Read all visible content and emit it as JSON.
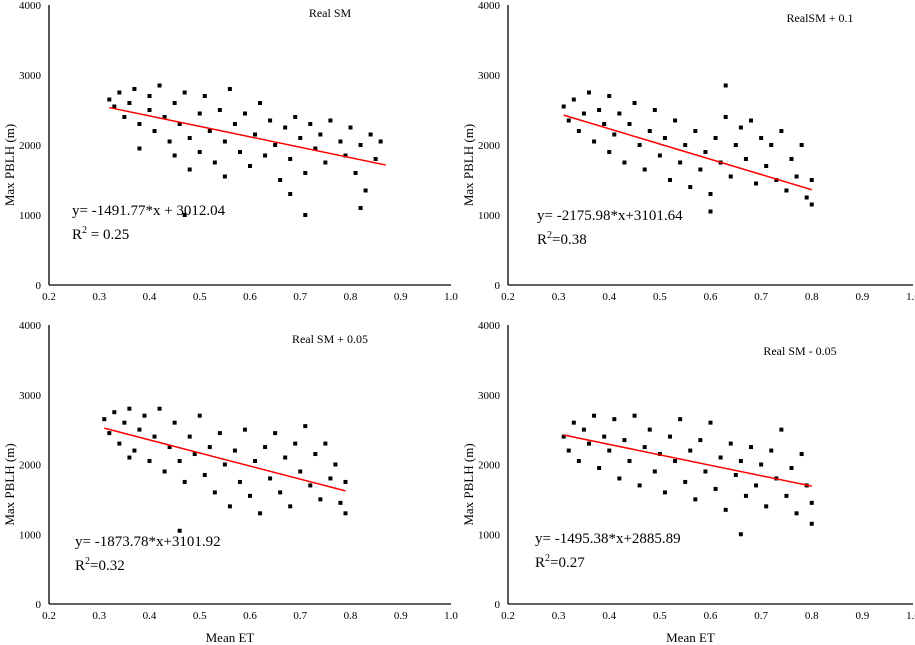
{
  "chart_data": [
    {
      "type": "scatter",
      "title": "Real SM",
      "xlabel": "",
      "ylabel": "Max PBLH (m)",
      "xlim": [
        0.2,
        1.0
      ],
      "ylim": [
        0,
        4000
      ],
      "xticks": [
        "0.2",
        "0.3",
        "0.4",
        "0.5",
        "0.6",
        "0.7",
        "0.8",
        "0.9",
        "1.0"
      ],
      "yticks": [
        "0",
        "1000",
        "2000",
        "3000",
        "4000"
      ],
      "grid": false,
      "equation": "y= -1491.77*x + 3012.04",
      "r2_label": "R",
      "r2_value": " = 0.25",
      "fit": {
        "slope": -1491.77,
        "intercept": 3012.04,
        "x_range": [
          0.32,
          0.87
        ]
      },
      "points": [
        [
          0.32,
          2650
        ],
        [
          0.33,
          2550
        ],
        [
          0.34,
          2750
        ],
        [
          0.35,
          2400
        ],
        [
          0.36,
          2600
        ],
        [
          0.37,
          2800
        ],
        [
          0.38,
          2300
        ],
        [
          0.38,
          1950
        ],
        [
          0.4,
          2700
        ],
        [
          0.4,
          2500
        ],
        [
          0.41,
          2200
        ],
        [
          0.42,
          2850
        ],
        [
          0.43,
          2400
        ],
        [
          0.44,
          2050
        ],
        [
          0.45,
          2600
        ],
        [
          0.45,
          1850
        ],
        [
          0.46,
          2300
        ],
        [
          0.47,
          2750
        ],
        [
          0.48,
          2100
        ],
        [
          0.48,
          1650
        ],
        [
          0.5,
          2450
        ],
        [
          0.5,
          1900
        ],
        [
          0.51,
          2700
        ],
        [
          0.52,
          2200
        ],
        [
          0.53,
          1750
        ],
        [
          0.54,
          2500
        ],
        [
          0.55,
          2050
        ],
        [
          0.55,
          1550
        ],
        [
          0.56,
          2800
        ],
        [
          0.57,
          2300
        ],
        [
          0.58,
          1900
        ],
        [
          0.59,
          2450
        ],
        [
          0.6,
          1700
        ],
        [
          0.61,
          2150
        ],
        [
          0.62,
          2600
        ],
        [
          0.63,
          1850
        ],
        [
          0.64,
          2350
        ],
        [
          0.65,
          2000
        ],
        [
          0.66,
          1500
        ],
        [
          0.67,
          2250
        ],
        [
          0.68,
          1800
        ],
        [
          0.69,
          2400
        ],
        [
          0.7,
          2100
        ],
        [
          0.71,
          1600
        ],
        [
          0.72,
          2300
        ],
        [
          0.73,
          1950
        ],
        [
          0.74,
          2150
        ],
        [
          0.75,
          1750
        ],
        [
          0.76,
          2350
        ],
        [
          0.78,
          2050
        ],
        [
          0.79,
          1850
        ],
        [
          0.8,
          2250
        ],
        [
          0.81,
          1600
        ],
        [
          0.82,
          2000
        ],
        [
          0.83,
          1350
        ],
        [
          0.84,
          2150
        ],
        [
          0.85,
          1800
        ],
        [
          0.86,
          2050
        ],
        [
          0.71,
          1000
        ],
        [
          0.47,
          1000
        ],
        [
          0.82,
          1100
        ],
        [
          0.68,
          1300
        ]
      ],
      "colors": {
        "points": "#000000",
        "fit": "#ff0000"
      }
    },
    {
      "type": "scatter",
      "title": "RealSM + 0.1",
      "xlabel": "",
      "ylabel": "Max PBLH (m)",
      "xlim": [
        0.2,
        1.0
      ],
      "ylim": [
        0,
        4000
      ],
      "xticks": [
        "0.2",
        "0.3",
        "0.4",
        "0.5",
        "0.6",
        "0.7",
        "0.8",
        "0.9",
        "1.0"
      ],
      "yticks": [
        "0",
        "1000",
        "2000",
        "3000",
        "4000"
      ],
      "grid": false,
      "equation": "y= -2175.98*x+3101.64",
      "r2_label": "R",
      "r2_value": "=0.38",
      "fit": {
        "slope": -2175.98,
        "intercept": 3101.64,
        "x_range": [
          0.31,
          0.8
        ]
      },
      "points": [
        [
          0.31,
          2550
        ],
        [
          0.32,
          2350
        ],
        [
          0.33,
          2650
        ],
        [
          0.34,
          2200
        ],
        [
          0.35,
          2450
        ],
        [
          0.36,
          2750
        ],
        [
          0.37,
          2050
        ],
        [
          0.38,
          2500
        ],
        [
          0.39,
          2300
        ],
        [
          0.4,
          2700
        ],
        [
          0.4,
          1900
        ],
        [
          0.41,
          2150
        ],
        [
          0.42,
          2450
        ],
        [
          0.43,
          1750
        ],
        [
          0.44,
          2300
        ],
        [
          0.45,
          2600
        ],
        [
          0.46,
          2000
        ],
        [
          0.47,
          1650
        ],
        [
          0.48,
          2200
        ],
        [
          0.49,
          2500
        ],
        [
          0.5,
          1850
        ],
        [
          0.51,
          2100
        ],
        [
          0.52,
          1500
        ],
        [
          0.53,
          2350
        ],
        [
          0.54,
          1750
        ],
        [
          0.55,
          2000
        ],
        [
          0.56,
          1400
        ],
        [
          0.57,
          2200
        ],
        [
          0.58,
          1650
        ],
        [
          0.59,
          1900
        ],
        [
          0.6,
          1300
        ],
        [
          0.61,
          2100
        ],
        [
          0.62,
          1750
        ],
        [
          0.63,
          2400
        ],
        [
          0.64,
          1550
        ],
        [
          0.65,
          2000
        ],
        [
          0.66,
          2250
        ],
        [
          0.67,
          1800
        ],
        [
          0.68,
          2350
        ],
        [
          0.69,
          1450
        ],
        [
          0.7,
          2100
        ],
        [
          0.71,
          1700
        ],
        [
          0.72,
          2000
        ],
        [
          0.73,
          1500
        ],
        [
          0.74,
          2200
        ],
        [
          0.75,
          1350
        ],
        [
          0.76,
          1800
        ],
        [
          0.77,
          1550
        ],
        [
          0.78,
          2000
        ],
        [
          0.79,
          1250
        ],
        [
          0.8,
          1500
        ],
        [
          0.8,
          1150
        ],
        [
          0.63,
          2850
        ],
        [
          0.6,
          1050
        ]
      ],
      "colors": {
        "points": "#000000",
        "fit": "#ff0000"
      }
    },
    {
      "type": "scatter",
      "title": "Real SM + 0.05",
      "xlabel": "Mean ET",
      "ylabel": "Max PBLH (m)",
      "xlim": [
        0.2,
        1.0
      ],
      "ylim": [
        0,
        4000
      ],
      "xticks": [
        "0.2",
        "0.3",
        "0.4",
        "0.5",
        "0.6",
        "0.7",
        "0.8",
        "0.9",
        "1.0"
      ],
      "yticks": [
        "0",
        "1000",
        "2000",
        "3000",
        "4000"
      ],
      "grid": false,
      "equation": "y= -1873.78*x+3101.92",
      "r2_label": "R",
      "r2_value": "=0.32",
      "fit": {
        "slope": -1873.78,
        "intercept": 3101.92,
        "x_range": [
          0.31,
          0.79
        ]
      },
      "points": [
        [
          0.31,
          2650
        ],
        [
          0.32,
          2450
        ],
        [
          0.33,
          2750
        ],
        [
          0.34,
          2300
        ],
        [
          0.35,
          2600
        ],
        [
          0.36,
          2800
        ],
        [
          0.37,
          2200
        ],
        [
          0.38,
          2500
        ],
        [
          0.39,
          2700
        ],
        [
          0.4,
          2050
        ],
        [
          0.41,
          2400
        ],
        [
          0.42,
          2800
        ],
        [
          0.43,
          1900
        ],
        [
          0.44,
          2250
        ],
        [
          0.45,
          2600
        ],
        [
          0.46,
          2050
        ],
        [
          0.47,
          1750
        ],
        [
          0.48,
          2400
        ],
        [
          0.49,
          2150
        ],
        [
          0.5,
          2700
        ],
        [
          0.51,
          1850
        ],
        [
          0.52,
          2250
        ],
        [
          0.53,
          1600
        ],
        [
          0.54,
          2450
        ],
        [
          0.55,
          2000
        ],
        [
          0.56,
          1400
        ],
        [
          0.57,
          2200
        ],
        [
          0.58,
          1750
        ],
        [
          0.59,
          2500
        ],
        [
          0.6,
          1550
        ],
        [
          0.61,
          2050
        ],
        [
          0.62,
          1300
        ],
        [
          0.63,
          2250
        ],
        [
          0.64,
          1800
        ],
        [
          0.65,
          2450
        ],
        [
          0.66,
          1600
        ],
        [
          0.67,
          2100
        ],
        [
          0.68,
          1400
        ],
        [
          0.69,
          2300
        ],
        [
          0.7,
          1900
        ],
        [
          0.71,
          2550
        ],
        [
          0.72,
          1700
        ],
        [
          0.73,
          2150
        ],
        [
          0.74,
          1500
        ],
        [
          0.75,
          2300
        ],
        [
          0.76,
          1800
        ],
        [
          0.77,
          2000
        ],
        [
          0.78,
          1450
        ],
        [
          0.79,
          1300
        ],
        [
          0.79,
          1750
        ],
        [
          0.46,
          1050
        ],
        [
          0.36,
          2100
        ]
      ],
      "colors": {
        "points": "#000000",
        "fit": "#ff0000"
      }
    },
    {
      "type": "scatter",
      "title": "Real SM - 0.05",
      "xlabel": "Mean ET",
      "ylabel": "Max PBLH (m)",
      "xlim": [
        0.2,
        1.0
      ],
      "ylim": [
        0,
        4000
      ],
      "xticks": [
        "0.2",
        "0.3",
        "0.4",
        "0.5",
        "0.6",
        "0.7",
        "0.8",
        "0.9",
        "1.0"
      ],
      "yticks": [
        "0",
        "1000",
        "2000",
        "3000",
        "4000"
      ],
      "grid": false,
      "equation": "y= -1495.38*x+2885.89",
      "r2_label": "R",
      "r2_value": "=0.27",
      "fit": {
        "slope": -1495.38,
        "intercept": 2885.89,
        "x_range": [
          0.31,
          0.8
        ]
      },
      "points": [
        [
          0.31,
          2400
        ],
        [
          0.32,
          2200
        ],
        [
          0.33,
          2600
        ],
        [
          0.34,
          2050
        ],
        [
          0.35,
          2500
        ],
        [
          0.36,
          2300
        ],
        [
          0.37,
          2700
        ],
        [
          0.38,
          1950
        ],
        [
          0.39,
          2400
        ],
        [
          0.4,
          2200
        ],
        [
          0.41,
          2650
        ],
        [
          0.42,
          1800
        ],
        [
          0.43,
          2350
        ],
        [
          0.44,
          2050
        ],
        [
          0.45,
          2700
        ],
        [
          0.46,
          1700
        ],
        [
          0.47,
          2250
        ],
        [
          0.48,
          2500
        ],
        [
          0.49,
          1900
        ],
        [
          0.5,
          2150
        ],
        [
          0.51,
          1600
        ],
        [
          0.52,
          2400
        ],
        [
          0.53,
          2050
        ],
        [
          0.54,
          2650
        ],
        [
          0.55,
          1750
        ],
        [
          0.56,
          2200
        ],
        [
          0.57,
          1500
        ],
        [
          0.58,
          2350
        ],
        [
          0.59,
          1900
        ],
        [
          0.6,
          2600
        ],
        [
          0.61,
          1650
        ],
        [
          0.62,
          2100
        ],
        [
          0.63,
          1350
        ],
        [
          0.64,
          2300
        ],
        [
          0.65,
          1850
        ],
        [
          0.66,
          2050
        ],
        [
          0.67,
          1550
        ],
        [
          0.68,
          2250
        ],
        [
          0.69,
          1700
        ],
        [
          0.7,
          2000
        ],
        [
          0.71,
          1400
        ],
        [
          0.72,
          2200
        ],
        [
          0.73,
          1800
        ],
        [
          0.74,
          2500
        ],
        [
          0.75,
          1550
        ],
        [
          0.76,
          1950
        ],
        [
          0.77,
          1300
        ],
        [
          0.78,
          2150
        ],
        [
          0.79,
          1700
        ],
        [
          0.8,
          1450
        ],
        [
          0.8,
          1150
        ],
        [
          0.66,
          1000
        ]
      ],
      "colors": {
        "points": "#000000",
        "fit": "#ff0000"
      }
    }
  ]
}
